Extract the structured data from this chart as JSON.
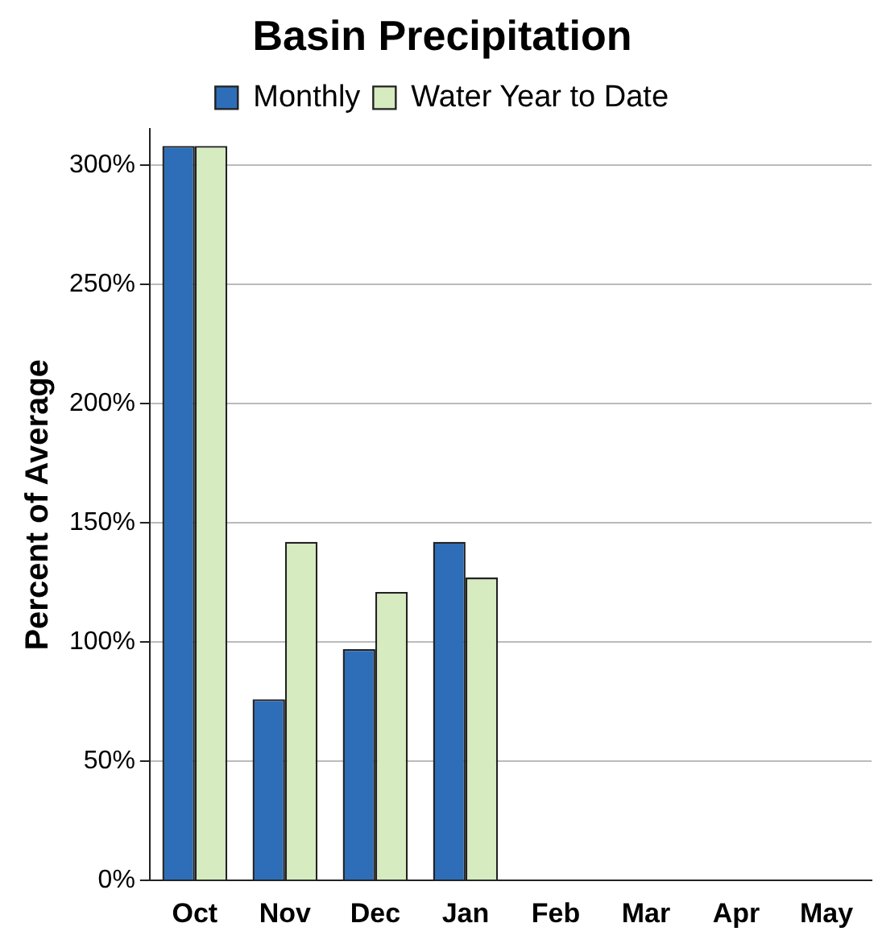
{
  "chart_data": {
    "type": "bar",
    "title": "Basin Precipitation",
    "ylabel": "Percent of Average",
    "categories": [
      "Oct",
      "Nov",
      "Dec",
      "Jan",
      "Feb",
      "Mar",
      "Apr",
      "May"
    ],
    "series": [
      {
        "name": "Monthly",
        "color": "#2e6eb8",
        "values": [
          308,
          76,
          97,
          142,
          null,
          null,
          null,
          null
        ]
      },
      {
        "name": "Water Year to Date",
        "color": "#d6ebbf",
        "values": [
          308,
          142,
          121,
          127,
          null,
          null,
          null,
          null
        ]
      }
    ],
    "ylim": [
      0,
      315
    ],
    "yticks": [
      {
        "value": 0,
        "label": "0%"
      },
      {
        "value": 50,
        "label": "50%"
      },
      {
        "value": 100,
        "label": "100%"
      },
      {
        "value": 150,
        "label": "150%"
      },
      {
        "value": 200,
        "label": "200%"
      },
      {
        "value": 250,
        "label": "250%"
      },
      {
        "value": 300,
        "label": "300%"
      }
    ],
    "grid": "y",
    "legend": "top"
  }
}
